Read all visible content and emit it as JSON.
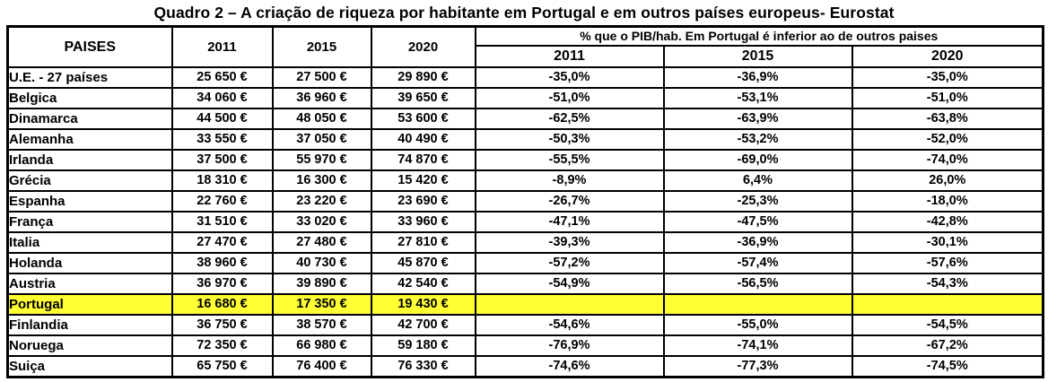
{
  "title": "Quadro 2 – A criação de riqueza por habitante em Portugal e em outros países europeus- Eurostat",
  "headers": {
    "paises": "PAISES",
    "years": [
      "2011",
      "2015",
      "2020"
    ],
    "pct_group": "% que o PIB/hab. Em Portugal é inferior ao de outros paises",
    "pct_years": [
      "2011",
      "2015",
      "2020"
    ]
  },
  "format": {
    "euro_suffix": " €",
    "percent_suffix": "%"
  },
  "colors": {
    "highlight_yellow": "#ffff33",
    "border": "#000000",
    "background": "#ffffff",
    "text": "#000000"
  },
  "chart_data": {
    "type": "table",
    "title": "Quadro 2 – A criação de riqueza por habitante em Portugal e em outros países europeus- Eurostat",
    "columns": [
      "PAISES",
      "2011",
      "2015",
      "2020",
      "% 2011",
      "% 2015",
      "% 2020"
    ],
    "column_groups": {
      "gdp_per_capita_eur_years": [
        "2011",
        "2015",
        "2020"
      ],
      "pct_group_label": "% que o PIB/hab. Em Portugal é inferior ao de outros paises",
      "pct_years": [
        "2011",
        "2015",
        "2020"
      ]
    },
    "rows": [
      {
        "country": "U.E. - 27 países",
        "gdp": [
          25650,
          27500,
          29890
        ],
        "pct": [
          -35.0,
          -36.9,
          -35.0
        ],
        "highlight": false
      },
      {
        "country": "Belgica",
        "gdp": [
          34060,
          36960,
          39650
        ],
        "pct": [
          -51.0,
          -53.1,
          -51.0
        ],
        "highlight": false
      },
      {
        "country": "Dinamarca",
        "gdp": [
          44500,
          48050,
          53600
        ],
        "pct": [
          -62.5,
          -63.9,
          -63.8
        ],
        "highlight": false
      },
      {
        "country": "Alemanha",
        "gdp": [
          33550,
          37050,
          40490
        ],
        "pct": [
          -50.3,
          -53.2,
          -52.0
        ],
        "highlight": false
      },
      {
        "country": "Irlanda",
        "gdp": [
          37500,
          55970,
          74870
        ],
        "pct": [
          -55.5,
          -69.0,
          -74.0
        ],
        "highlight": false
      },
      {
        "country": "Grécia",
        "gdp": [
          18310,
          16300,
          15420
        ],
        "pct": [
          -8.9,
          6.4,
          26.0
        ],
        "highlight": false
      },
      {
        "country": "Espanha",
        "gdp": [
          22760,
          23220,
          23690
        ],
        "pct": [
          -26.7,
          -25.3,
          -18.0
        ],
        "highlight": false
      },
      {
        "country": "França",
        "gdp": [
          31510,
          33020,
          33960
        ],
        "pct": [
          -47.1,
          -47.5,
          -42.8
        ],
        "highlight": false
      },
      {
        "country": "Italia",
        "gdp": [
          27470,
          27480,
          27810
        ],
        "pct": [
          -39.3,
          -36.9,
          -30.1
        ],
        "highlight": false
      },
      {
        "country": "Holanda",
        "gdp": [
          38960,
          40730,
          45870
        ],
        "pct": [
          -57.2,
          -57.4,
          -57.6
        ],
        "highlight": false
      },
      {
        "country": "Austria",
        "gdp": [
          36970,
          39890,
          42540
        ],
        "pct": [
          -54.9,
          -56.5,
          -54.3
        ],
        "highlight": false
      },
      {
        "country": "Portugal",
        "gdp": [
          16680,
          17350,
          19430
        ],
        "pct": [
          null,
          null,
          null
        ],
        "highlight": true
      },
      {
        "country": "Finlandia",
        "gdp": [
          36750,
          38570,
          42700
        ],
        "pct": [
          -54.6,
          -55.0,
          -54.5
        ],
        "highlight": false
      },
      {
        "country": "Noruega",
        "gdp": [
          72350,
          66980,
          59180
        ],
        "pct": [
          -76.9,
          -74.1,
          -67.2
        ],
        "highlight": false
      },
      {
        "country": "Suiça",
        "gdp": [
          65750,
          76400,
          76330
        ],
        "pct": [
          -74.6,
          -77.3,
          -74.5
        ],
        "highlight": false
      }
    ]
  }
}
